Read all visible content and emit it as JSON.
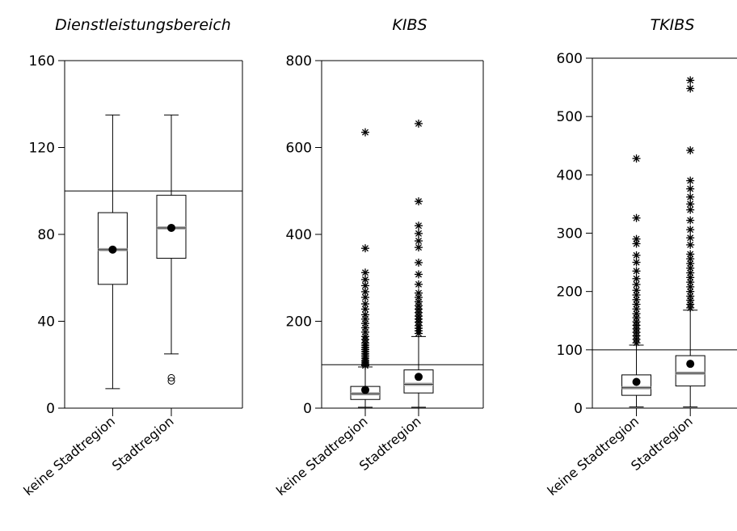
{
  "chart_data": [
    {
      "type": "box",
      "title": "Dienstleistungsbereich",
      "categories": [
        "keine Stadtregion",
        "Stadtregion"
      ],
      "ylim": [
        0,
        160
      ],
      "yticks": [
        0,
        40,
        80,
        120,
        160
      ],
      "reference_line": 100,
      "boxes": [
        {
          "whisker_low": 9,
          "q1": 57,
          "median": 73,
          "q3": 90,
          "whisker_high": 135,
          "mean": 73,
          "outliers_circle": [],
          "outliers_star": []
        },
        {
          "whisker_low": 25,
          "q1": 69,
          "median": 83,
          "q3": 98,
          "whisker_high": 135,
          "mean": 83,
          "outliers_circle": [
            12.5,
            14
          ],
          "outliers_star": []
        }
      ]
    },
    {
      "type": "box",
      "title": "KIBS",
      "categories": [
        "keine Stadtregion",
        "Stadtregion"
      ],
      "ylim": [
        0,
        800
      ],
      "yticks": [
        0,
        200,
        400,
        600,
        800
      ],
      "reference_line": 100,
      "boxes": [
        {
          "whisker_low": 2,
          "q1": 20,
          "median": 33,
          "q3": 50,
          "whisker_high": 95,
          "mean": 42,
          "outliers_circle": [],
          "outliers_star": [
            98,
            102,
            106,
            110,
            115,
            120,
            125,
            130,
            135,
            140,
            145,
            150,
            158,
            165,
            175,
            185,
            195,
            205,
            215,
            228,
            240,
            255,
            268,
            282,
            296,
            312,
            368,
            635
          ]
        },
        {
          "whisker_low": 2,
          "q1": 35,
          "median": 55,
          "q3": 88,
          "whisker_high": 165,
          "mean": 72,
          "outliers_circle": [],
          "outliers_star": [
            172,
            178,
            184,
            190,
            198,
            205,
            212,
            220,
            228,
            236,
            245,
            255,
            265,
            285,
            308,
            335,
            370,
            385,
            402,
            420,
            476,
            655
          ]
        }
      ]
    },
    {
      "type": "box",
      "title": "TKIBS",
      "categories": [
        "keine Stadtregion",
        "Stadtregion"
      ],
      "ylim": [
        0,
        600
      ],
      "yticks": [
        0,
        100,
        200,
        300,
        400,
        500,
        600
      ],
      "reference_line": 100,
      "boxes": [
        {
          "whisker_low": 2,
          "q1": 22,
          "median": 35,
          "q3": 57,
          "whisker_high": 108,
          "mean": 45,
          "outliers_circle": [],
          "outliers_star": [
            112,
            118,
            124,
            130,
            136,
            142,
            148,
            155,
            162,
            170,
            178,
            186,
            194,
            202,
            212,
            222,
            235,
            250,
            262,
            282,
            290,
            326,
            428
          ]
        },
        {
          "whisker_low": 2,
          "q1": 38,
          "median": 60,
          "q3": 90,
          "whisker_high": 168,
          "mean": 76,
          "outliers_circle": [],
          "outliers_star": [
            172,
            178,
            185,
            192,
            200,
            208,
            216,
            224,
            232,
            240,
            248,
            256,
            264,
            280,
            292,
            306,
            322,
            340,
            350,
            362,
            376,
            390,
            442,
            548,
            562
          ]
        }
      ]
    }
  ]
}
